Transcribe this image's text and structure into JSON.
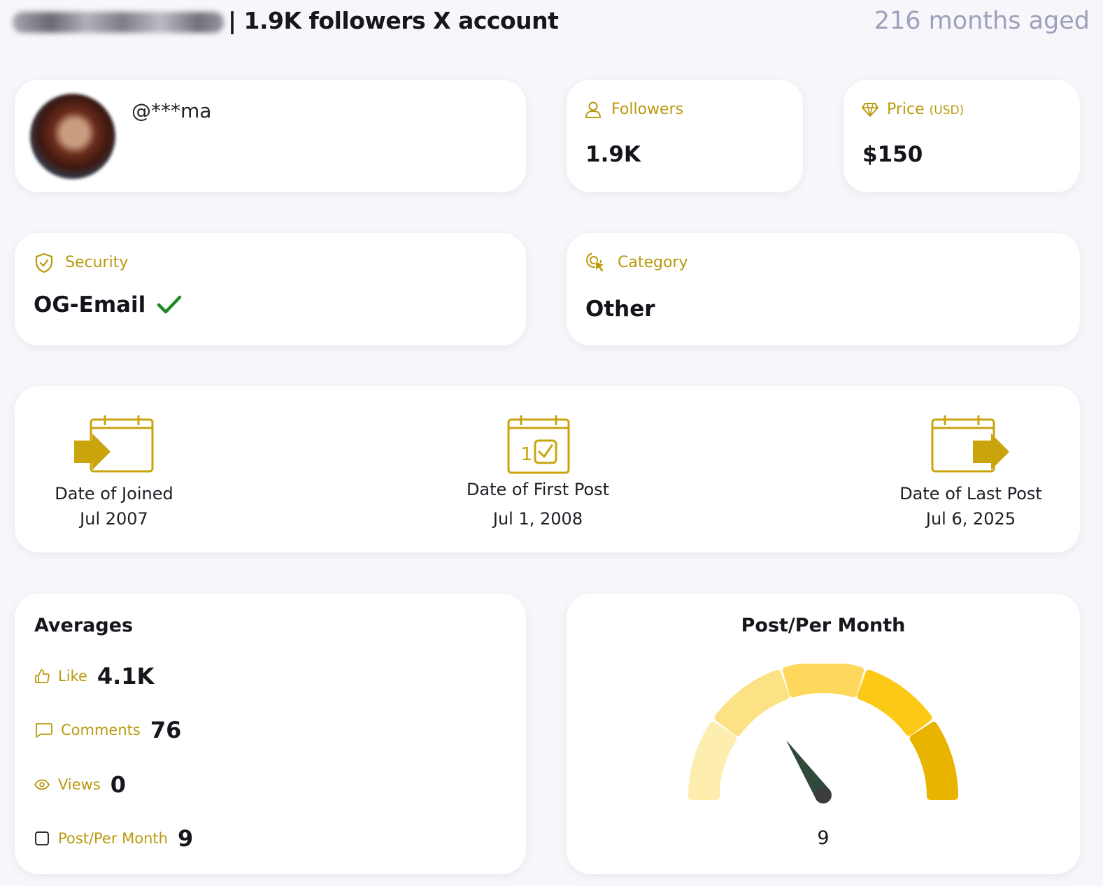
{
  "header": {
    "title": "| 1.9K followers X account",
    "age": "216 months aged"
  },
  "profile": {
    "handle": "@***ma"
  },
  "followers": {
    "label": "Followers",
    "value": "1.9K"
  },
  "price": {
    "label": "Price",
    "unit": "(USD)",
    "value": "$150"
  },
  "security": {
    "label": "Security",
    "value": "OG-Email"
  },
  "category": {
    "label": "Category",
    "value": "Other"
  },
  "dates": {
    "joined": {
      "label": "Date of Joined",
      "value": "Jul 2007"
    },
    "first_post": {
      "label": "Date of First Post",
      "value": "Jul 1, 2008",
      "icon_day": "1"
    },
    "last_post": {
      "label": "Date of Last Post",
      "value": "Jul 6, 2025"
    }
  },
  "averages": {
    "title": "Averages",
    "like": {
      "label": "Like",
      "value": "4.1K"
    },
    "comments": {
      "label": "Comments",
      "value": "76"
    },
    "views": {
      "label": "Views",
      "value": "0"
    },
    "posts": {
      "label": "Post/Per Month",
      "value": "9"
    }
  },
  "gauge": {
    "title": "Post/Per Month",
    "value": "9",
    "segment_colors": [
      "#fdeeb0",
      "#fde285",
      "#fdd85c",
      "#fbc916",
      "#e8b400"
    ],
    "needle_color": "#2f4a3b"
  },
  "colors": {
    "accent": "#b99a0e",
    "check": "#1e8a23"
  }
}
